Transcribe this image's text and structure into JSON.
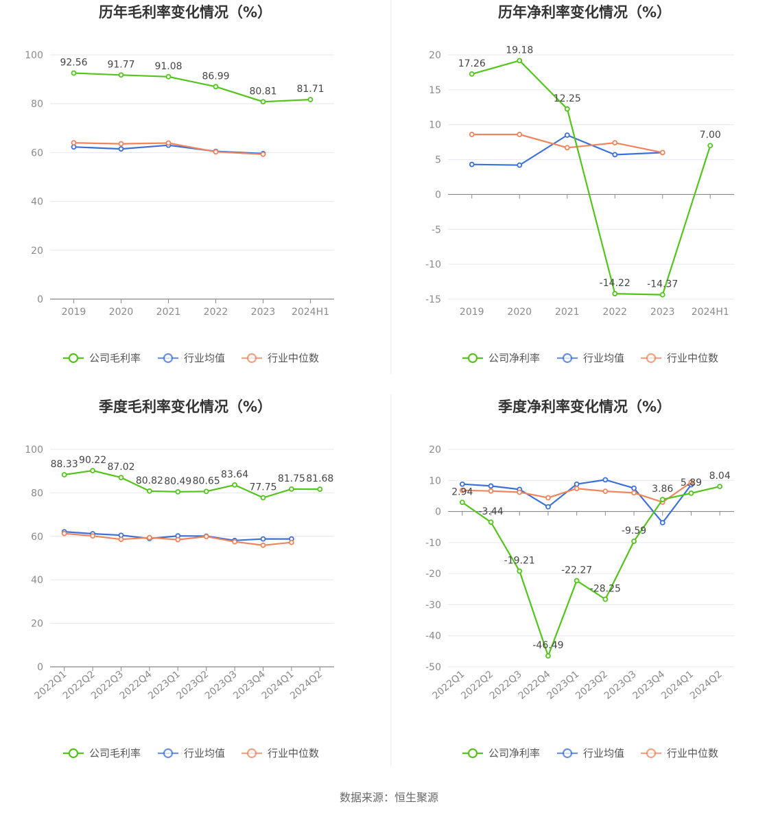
{
  "source": "数据来源：恒生聚源",
  "colors": {
    "company": "#52c41a",
    "avg": "#3b6fd9",
    "median": "#f0845c",
    "grid": "#e6e6ef",
    "axis": "#888888"
  },
  "chart_data": [
    {
      "type": "line",
      "title": "历年毛利率变化情况（%）",
      "categories": [
        "2019",
        "2020",
        "2021",
        "2022",
        "2023",
        "2024H1"
      ],
      "ylim": [
        0,
        100
      ],
      "yticks": [
        0,
        20,
        40,
        60,
        80,
        100
      ],
      "grid": true,
      "legend": "bottom",
      "series": [
        {
          "name": "公司毛利率",
          "key": "company",
          "labels": true,
          "values": [
            92.56,
            91.77,
            91.08,
            86.99,
            80.81,
            81.71
          ]
        },
        {
          "name": "行业均值",
          "key": "avg",
          "values": [
            62.3,
            61.5,
            63.0,
            60.5,
            59.6,
            null
          ]
        },
        {
          "name": "行业中位数",
          "key": "median",
          "values": [
            64.0,
            63.6,
            63.9,
            60.3,
            59.3,
            null
          ]
        }
      ]
    },
    {
      "type": "line",
      "title": "历年净利率变化情况（%）",
      "categories": [
        "2019",
        "2020",
        "2021",
        "2022",
        "2023",
        "2024H1"
      ],
      "ylim": [
        -15,
        20
      ],
      "yticks": [
        -15,
        -10,
        -5,
        0,
        5,
        10,
        15,
        20
      ],
      "grid": true,
      "legend": "bottom",
      "series": [
        {
          "name": "公司净利率",
          "key": "company",
          "labels": true,
          "values": [
            17.26,
            19.18,
            12.25,
            -14.22,
            -14.37,
            7.0
          ],
          "label_text": [
            "17.26",
            "19.18",
            "12.25",
            "-14.22",
            "-14.37",
            "7.00"
          ]
        },
        {
          "name": "行业均值",
          "key": "avg",
          "values": [
            4.3,
            4.2,
            8.5,
            5.7,
            6.0,
            null
          ]
        },
        {
          "name": "行业中位数",
          "key": "median",
          "values": [
            8.6,
            8.6,
            6.7,
            7.4,
            6.0,
            null
          ]
        }
      ]
    },
    {
      "type": "line",
      "title": "季度毛利率变化情况（%）",
      "categories": [
        "2022Q1",
        "2022Q2",
        "2022Q3",
        "2022Q4",
        "2023Q1",
        "2023Q2",
        "2023Q3",
        "2023Q4",
        "2024Q1",
        "2024Q2"
      ],
      "ylim": [
        0,
        100
      ],
      "yticks": [
        0,
        20,
        40,
        60,
        80,
        100
      ],
      "grid": true,
      "legend": "bottom",
      "series": [
        {
          "name": "公司毛利率",
          "key": "company",
          "labels": true,
          "values": [
            88.33,
            90.22,
            87.02,
            80.82,
            80.49,
            80.65,
            83.64,
            77.75,
            81.75,
            81.68
          ]
        },
        {
          "name": "行业均值",
          "key": "avg",
          "values": [
            62.1,
            61.2,
            60.5,
            59.0,
            60.2,
            60.1,
            58.1,
            58.8,
            58.8,
            null
          ]
        },
        {
          "name": "行业中位数",
          "key": "median",
          "values": [
            61.3,
            60.2,
            58.6,
            59.4,
            58.5,
            59.9,
            57.5,
            55.9,
            57.2,
            null
          ]
        }
      ]
    },
    {
      "type": "line",
      "title": "季度净利率变化情况（%）",
      "categories": [
        "2022Q1",
        "2022Q2",
        "2022Q3",
        "2022Q4",
        "2023Q1",
        "2023Q2",
        "2023Q3",
        "2023Q4",
        "2024Q1",
        "2024Q2"
      ],
      "ylim": [
        -50,
        20
      ],
      "yticks": [
        -50,
        -40,
        -30,
        -20,
        -10,
        0,
        10,
        20
      ],
      "grid": true,
      "legend": "bottom",
      "series": [
        {
          "name": "公司净利率",
          "key": "company",
          "labels": true,
          "values": [
            2.94,
            -3.44,
            -19.21,
            -46.49,
            -22.27,
            -28.25,
            -9.59,
            3.86,
            5.89,
            8.04
          ]
        },
        {
          "name": "行业均值",
          "key": "avg",
          "values": [
            8.8,
            8.2,
            7.1,
            1.5,
            8.8,
            10.2,
            7.5,
            -3.6,
            8.6,
            null
          ]
        },
        {
          "name": "行业中位数",
          "key": "median",
          "values": [
            6.8,
            6.6,
            6.2,
            4.4,
            7.4,
            6.5,
            6.0,
            3.0,
            9.4,
            null
          ]
        }
      ]
    }
  ]
}
